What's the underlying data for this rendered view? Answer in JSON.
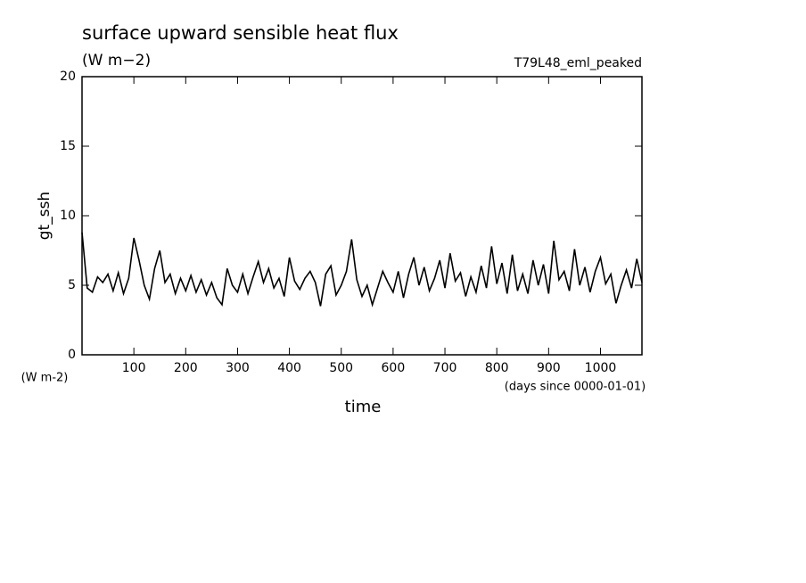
{
  "chart_data": {
    "type": "line",
    "title": "surface upward sensible heat flux",
    "subtitle": "(W m−2)",
    "annotation": "T79L48_eml_peaked",
    "y_label": "gt_ssh",
    "y_units": "(W m-2)",
    "x_label": "time",
    "x_units": "(days since 0000-01-01)",
    "x": [
      0,
      10,
      20,
      30,
      40,
      50,
      60,
      70,
      80,
      90,
      100,
      110,
      120,
      130,
      140,
      150,
      160,
      170,
      180,
      190,
      200,
      210,
      220,
      230,
      240,
      250,
      260,
      270,
      280,
      290,
      300,
      310,
      320,
      330,
      340,
      350,
      360,
      370,
      380,
      390,
      400,
      410,
      420,
      430,
      440,
      450,
      460,
      470,
      480,
      490,
      500,
      510,
      520,
      530,
      540,
      550,
      560,
      570,
      580,
      590,
      600,
      610,
      620,
      630,
      640,
      650,
      660,
      670,
      680,
      690,
      700,
      710,
      720,
      730,
      740,
      750,
      760,
      770,
      780,
      790,
      800,
      810,
      820,
      830,
      840,
      850,
      860,
      870,
      880,
      890,
      900,
      910,
      920,
      930,
      940,
      950,
      960,
      970,
      980,
      990,
      1000,
      1010,
      1020,
      1030,
      1040,
      1050,
      1060,
      1070,
      1080
    ],
    "series": [
      {
        "name": "gt_ssh",
        "color": "#000000",
        "values": [
          8.8,
          4.8,
          4.5,
          5.6,
          5.2,
          5.8,
          4.6,
          5.9,
          4.4,
          5.5,
          8.4,
          6.8,
          5.0,
          4.0,
          6.2,
          7.5,
          5.2,
          5.8,
          4.4,
          5.5,
          4.6,
          5.7,
          4.5,
          5.4,
          4.3,
          5.2,
          4.1,
          3.6,
          6.2,
          5.0,
          4.5,
          5.8,
          4.4,
          5.6,
          6.7,
          5.2,
          6.2,
          4.8,
          5.5,
          4.2,
          7.0,
          5.3,
          4.7,
          5.5,
          6.0,
          5.2,
          3.5,
          5.8,
          6.4,
          4.3,
          5.0,
          6.0,
          8.3,
          5.4,
          4.2,
          5.0,
          3.6,
          4.8,
          6.0,
          5.2,
          4.5,
          6.0,
          4.1,
          5.8,
          7.0,
          5.0,
          6.3,
          4.6,
          5.5,
          6.8,
          4.8,
          7.3,
          5.3,
          5.9,
          4.2,
          5.6,
          4.5,
          6.4,
          4.8,
          7.8,
          5.1,
          6.6,
          4.4,
          7.2,
          4.6,
          5.8,
          4.4,
          6.8,
          5.0,
          6.5,
          4.4,
          8.2,
          5.4,
          6.0,
          4.6,
          7.6,
          5.0,
          6.3,
          4.5,
          6.0,
          7.0,
          5.1,
          5.8,
          3.7,
          5.0,
          6.1,
          4.8,
          6.9,
          5.2
        ]
      }
    ],
    "xlim": [
      0,
      1080
    ],
    "ylim": [
      0,
      20
    ],
    "xticks": [
      100,
      200,
      300,
      400,
      500,
      600,
      700,
      800,
      900,
      1000
    ],
    "yticks": [
      0,
      5,
      10,
      15,
      20
    ]
  }
}
